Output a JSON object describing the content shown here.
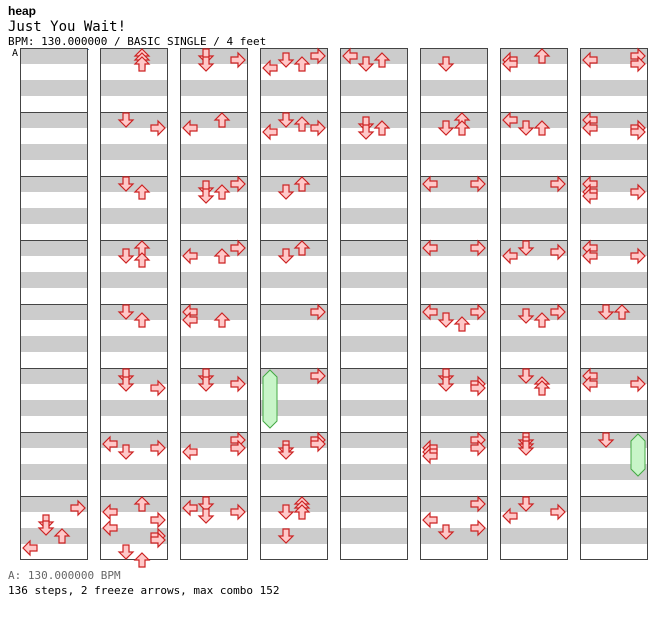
{
  "header": {
    "artist": "heap",
    "song_title": "Just You Wait!",
    "info_line": "BPM: 130.000000 / BASIC SINGLE / 4 feet",
    "bpm_marker_label": "A"
  },
  "footer": {
    "bpm_legend": "A: 130.000000 BPM",
    "stats": "136 steps, 2 freeze arrows, max combo 152"
  },
  "colors": {
    "stripe": "#cccccc",
    "border": "#444444",
    "arrow_stroke": "#cc2222",
    "arrow_fill": "#ffc8c8",
    "freeze_fill": "#c8f5c8",
    "freeze_stroke": "#44aa44",
    "bpm_line": "#4a8bd8"
  },
  "chart_data": {
    "type": "step-chart",
    "lanes": [
      "left",
      "down",
      "up",
      "right"
    ],
    "columns": 8,
    "measures_per_column": 8,
    "beats_per_measure": 4,
    "steps": 136,
    "freeze_arrows": 2,
    "max_combo": 152,
    "bpm": 130.0,
    "notes": [
      [
        0,
        7,
        1,
        3
      ],
      [
        0,
        7,
        4.5,
        1
      ],
      [
        0,
        7,
        6,
        1
      ],
      [
        0,
        7,
        8,
        2
      ],
      [
        0,
        7,
        11,
        0
      ],
      [
        1,
        0,
        0,
        2
      ],
      [
        1,
        0,
        1,
        2
      ],
      [
        1,
        0,
        2,
        2
      ],
      [
        1,
        1,
        0,
        1
      ],
      [
        1,
        1,
        2,
        3
      ],
      [
        1,
        2,
        0,
        1
      ],
      [
        1,
        2,
        2,
        2
      ],
      [
        1,
        3,
        0,
        2
      ],
      [
        1,
        3,
        2,
        1
      ],
      [
        1,
        3,
        3,
        2
      ],
      [
        1,
        4,
        0,
        1
      ],
      [
        1,
        4,
        2,
        2
      ],
      [
        1,
        5,
        0,
        1
      ],
      [
        1,
        5,
        2,
        1
      ],
      [
        1,
        5,
        3,
        3
      ],
      [
        1,
        6,
        1,
        0
      ],
      [
        1,
        6,
        2,
        3
      ],
      [
        1,
        6,
        3,
        1
      ],
      [
        1,
        7,
        0,
        2
      ],
      [
        1,
        7,
        2,
        0
      ],
      [
        1,
        7,
        4,
        3
      ],
      [
        1,
        7,
        6,
        0
      ],
      [
        1,
        7,
        8,
        3
      ],
      [
        1,
        7,
        9,
        3
      ],
      [
        1,
        7,
        12,
        1
      ],
      [
        1,
        7,
        14,
        2
      ],
      [
        2,
        0,
        0,
        1
      ],
      [
        2,
        0,
        1,
        3
      ],
      [
        2,
        0,
        2,
        1
      ],
      [
        2,
        1,
        0,
        2
      ],
      [
        2,
        1,
        2,
        0
      ],
      [
        2,
        2,
        0,
        3
      ],
      [
        2,
        2,
        1,
        1
      ],
      [
        2,
        2,
        2,
        2
      ],
      [
        2,
        2,
        3,
        1
      ],
      [
        2,
        3,
        0,
        3
      ],
      [
        2,
        3,
        2,
        0
      ],
      [
        2,
        3,
        2,
        2
      ],
      [
        2,
        4,
        0,
        0
      ],
      [
        2,
        4,
        2,
        0
      ],
      [
        2,
        4,
        2,
        2
      ],
      [
        2,
        5,
        0,
        1
      ],
      [
        2,
        5,
        2,
        1
      ],
      [
        2,
        5,
        2,
        3
      ],
      [
        2,
        6,
        0,
        3
      ],
      [
        2,
        6,
        2,
        3
      ],
      [
        2,
        6,
        3,
        0
      ],
      [
        2,
        7,
        0,
        1
      ],
      [
        2,
        7,
        1,
        0
      ],
      [
        2,
        7,
        2,
        3
      ],
      [
        2,
        7,
        3,
        1
      ],
      [
        3,
        0,
        0,
        3
      ],
      [
        3,
        0,
        1,
        1
      ],
      [
        3,
        0,
        2,
        2
      ],
      [
        3,
        0,
        3,
        0
      ],
      [
        3,
        1,
        0,
        1
      ],
      [
        3,
        1,
        1,
        2
      ],
      [
        3,
        1,
        2,
        3
      ],
      [
        3,
        1,
        3,
        0
      ],
      [
        3,
        2,
        0,
        2
      ],
      [
        3,
        2,
        2,
        1
      ],
      [
        3,
        3,
        0,
        2
      ],
      [
        3,
        3,
        2,
        1
      ],
      [
        3,
        4,
        0,
        3
      ],
      [
        3,
        5,
        0,
        3
      ],
      [
        3,
        6,
        0,
        3
      ],
      [
        3,
        6,
        1,
        3
      ],
      [
        3,
        6,
        2,
        1
      ],
      [
        3,
        6,
        3,
        1
      ],
      [
        3,
        7,
        0,
        2
      ],
      [
        3,
        7,
        1,
        2
      ],
      [
        3,
        7,
        2,
        1
      ],
      [
        3,
        7,
        2,
        2
      ],
      [
        3,
        7,
        8,
        1
      ],
      [
        4,
        0,
        0,
        0
      ],
      [
        4,
        0,
        1,
        2
      ],
      [
        4,
        0,
        2,
        1
      ],
      [
        4,
        1,
        1,
        1
      ],
      [
        4,
        1,
        2,
        2
      ],
      [
        4,
        1,
        3,
        1
      ],
      [
        5,
        0,
        2,
        1
      ],
      [
        5,
        1,
        0,
        2
      ],
      [
        5,
        1,
        2,
        1
      ],
      [
        5,
        1,
        2,
        2
      ],
      [
        5,
        2,
        0,
        0
      ],
      [
        5,
        2,
        0,
        3
      ],
      [
        5,
        3,
        0,
        0
      ],
      [
        5,
        3,
        0,
        3
      ],
      [
        5,
        4,
        0,
        0
      ],
      [
        5,
        4,
        0,
        3
      ],
      [
        5,
        4,
        2,
        1
      ],
      [
        5,
        4,
        3,
        2
      ],
      [
        5,
        5,
        0,
        1
      ],
      [
        5,
        5,
        2,
        1
      ],
      [
        5,
        5,
        2,
        3
      ],
      [
        5,
        5,
        3,
        3
      ],
      [
        5,
        6,
        0,
        3
      ],
      [
        5,
        6,
        2,
        0
      ],
      [
        5,
        6,
        2,
        3
      ],
      [
        5,
        6,
        3,
        0
      ],
      [
        5,
        6,
        4,
        0
      ],
      [
        5,
        7,
        0,
        3
      ],
      [
        5,
        7,
        4,
        0
      ],
      [
        5,
        7,
        6,
        3
      ],
      [
        5,
        7,
        7,
        1
      ],
      [
        6,
        0,
        0,
        2
      ],
      [
        6,
        0,
        1,
        0
      ],
      [
        6,
        0,
        2,
        0
      ],
      [
        6,
        1,
        0,
        0
      ],
      [
        6,
        1,
        2,
        1
      ],
      [
        6,
        1,
        2,
        2
      ],
      [
        6,
        2,
        0,
        3
      ],
      [
        6,
        3,
        0,
        1
      ],
      [
        6,
        3,
        1,
        3
      ],
      [
        6,
        3,
        2,
        0
      ],
      [
        6,
        4,
        0,
        3
      ],
      [
        6,
        4,
        1,
        1
      ],
      [
        6,
        4,
        2,
        2
      ],
      [
        6,
        5,
        0,
        1
      ],
      [
        6,
        5,
        2,
        2
      ],
      [
        6,
        5,
        3,
        2
      ],
      [
        6,
        6,
        0,
        1
      ],
      [
        6,
        6,
        1,
        1
      ],
      [
        6,
        6,
        2,
        1
      ],
      [
        6,
        7,
        0,
        1
      ],
      [
        6,
        7,
        2,
        3
      ],
      [
        6,
        7,
        3,
        0
      ],
      [
        7,
        0,
        0,
        3
      ],
      [
        7,
        0,
        1,
        0
      ],
      [
        7,
        0,
        2,
        3
      ],
      [
        7,
        1,
        0,
        0
      ],
      [
        7,
        1,
        2,
        0
      ],
      [
        7,
        1,
        2,
        3
      ],
      [
        7,
        1,
        3,
        3
      ],
      [
        7,
        2,
        0,
        0
      ],
      [
        7,
        2,
        2,
        0
      ],
      [
        7,
        2,
        2,
        3
      ],
      [
        7,
        2,
        3,
        0
      ],
      [
        7,
        3,
        0,
        0
      ],
      [
        7,
        3,
        2,
        0
      ],
      [
        7,
        3,
        2,
        3
      ],
      [
        7,
        4,
        0,
        1
      ],
      [
        7,
        4,
        0,
        2
      ],
      [
        7,
        5,
        0,
        0
      ],
      [
        7,
        5,
        2,
        0
      ],
      [
        7,
        5,
        2,
        3
      ],
      [
        7,
        6,
        0,
        1
      ]
    ],
    "freezes": [
      [
        3,
        5,
        2,
        0,
        2.5
      ],
      [
        7,
        6,
        2,
        3,
        1.5
      ]
    ]
  }
}
